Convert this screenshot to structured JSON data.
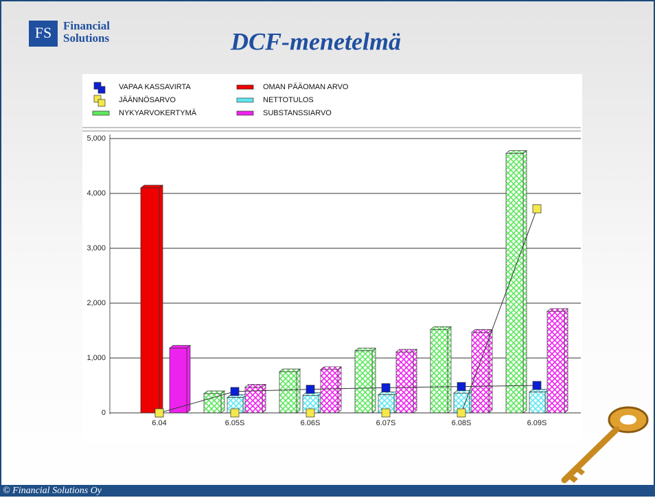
{
  "logo": {
    "mark": "FS",
    "line1": "Financial",
    "line2": "Solutions"
  },
  "footer": "© Financial Solutions Oy",
  "chart_data": {
    "type": "bar",
    "title": "DCF-menetelmä",
    "categories": [
      "6.04",
      "6.05S",
      "6.06S",
      "6.07S",
      "6.08S",
      "6.09S"
    ],
    "ylim": [
      0,
      5000
    ],
    "yticks": [
      0,
      {
        "value": 1000,
        "label": "1,000"
      },
      {
        "value": 2000,
        "label": "2,000"
      },
      {
        "value": 3000,
        "label": "3,000"
      },
      {
        "value": 4000,
        "label": "4,000"
      },
      {
        "value": 5000,
        "label": "5,000"
      }
    ],
    "grid": true,
    "series": [
      {
        "name": "VAPAA KASSAVIRTA",
        "type": "line",
        "color": "#0a1fd6",
        "values": [
          0,
          390,
          430,
          460,
          480,
          500
        ]
      },
      {
        "name": "OMAN PÄÄOMAN ARVO",
        "color": "#ee0000",
        "values": [
          4100,
          null,
          null,
          null,
          null,
          null
        ]
      },
      {
        "name": "JÄÄNNÖSARVO",
        "type": "line",
        "color": "#f4e84a",
        "values": [
          0,
          0,
          0,
          0,
          0,
          3720
        ]
      },
      {
        "name": "NETTOTULOS",
        "color": "#5ee8f0",
        "values": [
          null,
          280,
          320,
          330,
          360,
          380
        ]
      },
      {
        "name": "NYKYARVOKERTYMÄ",
        "color": "#5ee85e",
        "values": [
          null,
          350,
          750,
          1130,
          1520,
          4730
        ]
      },
      {
        "name": "SUBSTANSSIARVO",
        "color": "#ee22ee",
        "values": [
          1180,
          470,
          790,
          1110,
          1470,
          1850
        ]
      }
    ]
  }
}
